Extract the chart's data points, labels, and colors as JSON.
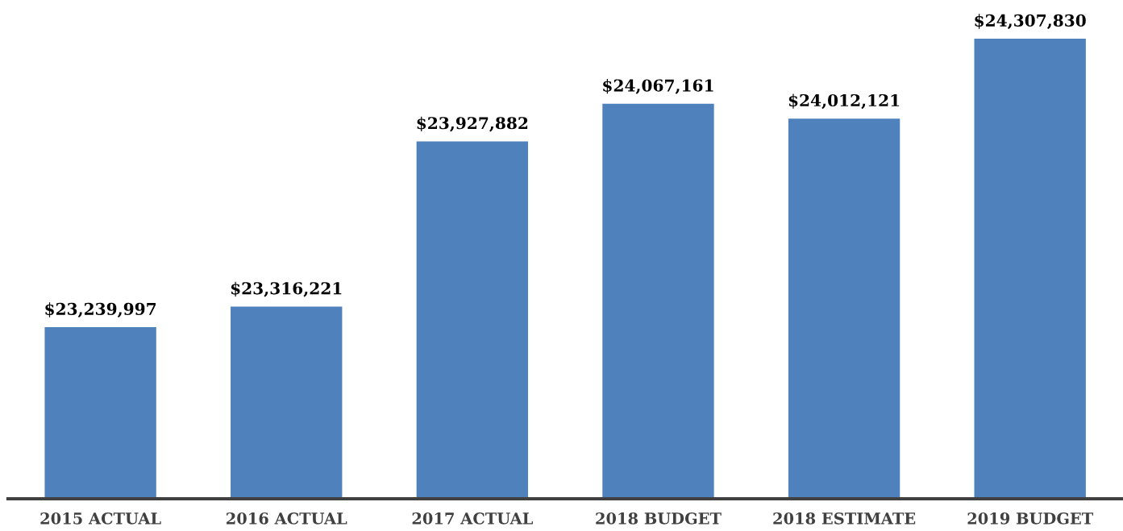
{
  "chart_data": {
    "type": "bar",
    "ylim": [
      22604600,
      24307830
    ],
    "categories": [
      "2015 ACTUAL",
      "2016 ACTUAL",
      "2017 ACTUAL",
      "2018 BUDGET",
      "2018 ESTIMATE",
      "2019 BUDGET"
    ],
    "values": [
      23239997,
      23316221,
      23927882,
      24067161,
      24012121,
      24307830
    ],
    "value_labels": [
      "$23,239,997",
      "$23,316,221",
      "$23,927,882",
      "$24,067,161",
      "$24,012,121",
      "$24,307,830"
    ],
    "color": "#4f81bd",
    "grid": false,
    "legend": false
  }
}
